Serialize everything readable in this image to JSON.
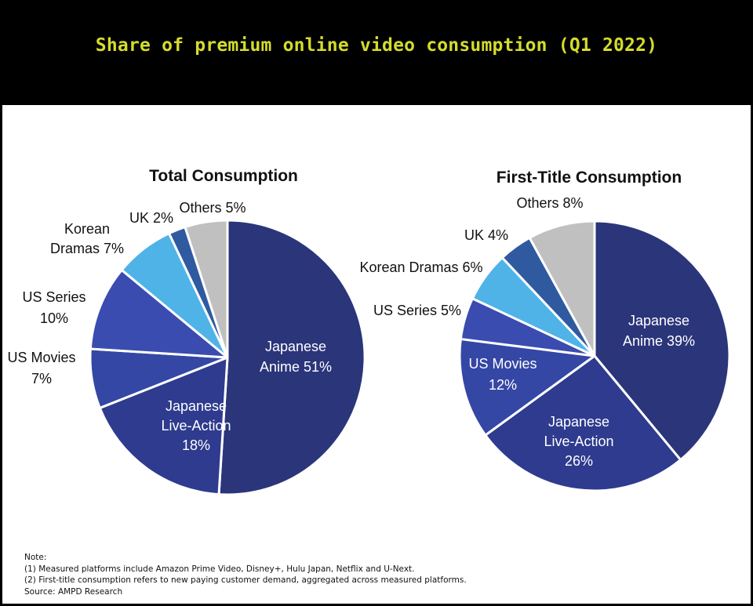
{
  "title": "Share of premium online video consumption (Q1 2022)",
  "colors": {
    "title": "#d4dc2b",
    "japanese_anime": "#2b357a",
    "japanese_live_action": "#2e3b8e",
    "us_movies": "#3547a5",
    "us_series": "#3a4cb0",
    "korean_dramas": "#4fb3e8",
    "uk": "#2f5aa0",
    "others": "#c0c0c0"
  },
  "chart_data": [
    {
      "type": "pie",
      "title": "Total Consumption",
      "slices": [
        {
          "label": "Japanese Anime",
          "value": 51,
          "label_lines": [
            "Japanese",
            "Anime 51%"
          ],
          "color": "#2b357a"
        },
        {
          "label": "Japanese Live-Action",
          "value": 18,
          "label_lines": [
            "Japanese",
            "Live-Action",
            "18%"
          ],
          "color": "#2e3b8e"
        },
        {
          "label": "US Movies",
          "value": 7,
          "label_lines": [
            "US Movies",
            "7%"
          ],
          "color": "#3547a5"
        },
        {
          "label": "US Series",
          "value": 10,
          "label_lines": [
            "US Series",
            "10%"
          ],
          "color": "#3a4cb0"
        },
        {
          "label": "Korean Dramas",
          "value": 7,
          "label_lines": [
            "Korean",
            "Dramas 7%"
          ],
          "color": "#4fb3e8"
        },
        {
          "label": "UK",
          "value": 2,
          "label_lines": [
            "UK 2%"
          ],
          "color": "#2f5aa0"
        },
        {
          "label": "Others",
          "value": 5,
          "label_lines": [
            "Others 5%"
          ],
          "color": "#c0c0c0"
        }
      ]
    },
    {
      "type": "pie",
      "title": "First-Title Consumption",
      "slices": [
        {
          "label": "Japanese Anime",
          "value": 39,
          "label_lines": [
            "Japanese",
            "Anime 39%"
          ],
          "color": "#2b357a"
        },
        {
          "label": "Japanese Live-Action",
          "value": 26,
          "label_lines": [
            "Japanese",
            "Live-Action",
            "26%"
          ],
          "color": "#2e3b8e"
        },
        {
          "label": "US Movies",
          "value": 12,
          "label_lines": [
            "US Movies",
            "12%"
          ],
          "color": "#3547a5"
        },
        {
          "label": "US Series",
          "value": 5,
          "label_lines": [
            "US Series 5%"
          ],
          "color": "#3a4cb0"
        },
        {
          "label": "Korean Dramas",
          "value": 6,
          "label_lines": [
            "Korean Dramas 6%"
          ],
          "color": "#4fb3e8"
        },
        {
          "label": "UK",
          "value": 4,
          "label_lines": [
            "UK 4%"
          ],
          "color": "#2f5aa0"
        },
        {
          "label": "Others",
          "value": 8,
          "label_lines": [
            "Others 8%"
          ],
          "color": "#c0c0c0"
        }
      ]
    }
  ],
  "notes": {
    "heading": "Note:",
    "line1": "(1) Measured platforms include Amazon Prime Video, Disney+, Hulu Japan, Netflix and U-Next.",
    "line2": "(2) First-title consumption refers to new paying customer demand, aggregated across measured platforms.",
    "source": "Source: AMPD Research"
  }
}
